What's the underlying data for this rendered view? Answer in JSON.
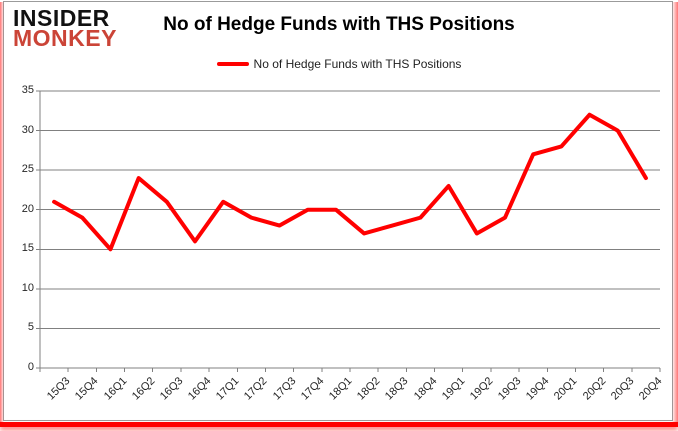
{
  "logo": {
    "line1": "INSIDER",
    "line2": "MONKEY"
  },
  "header": {
    "title": "No of Hedge Funds with THS Positions"
  },
  "legend": {
    "label": "No of Hedge Funds with THS Positions"
  },
  "colors": {
    "series": "#ff0000",
    "logo_accent": "#cb4437",
    "gridline": "#808080",
    "axis_line": "#808080",
    "axis_text": "#262626"
  },
  "chart_data": {
    "type": "line",
    "title": "No of Hedge Funds with THS Positions",
    "categories": [
      "15Q3",
      "15Q4",
      "16Q1",
      "16Q2",
      "16Q3",
      "16Q4",
      "17Q1",
      "17Q2",
      "17Q3",
      "17Q4",
      "18Q1",
      "18Q2",
      "18Q3",
      "18Q4",
      "19Q1",
      "19Q2",
      "19Q3",
      "19Q4",
      "20Q1",
      "20Q2",
      "20Q3",
      "20Q4"
    ],
    "series": [
      {
        "name": "No of Hedge Funds with THS Positions",
        "values": [
          21,
          19,
          15,
          24,
          21,
          16,
          21,
          19,
          18,
          20,
          20,
          17,
          18,
          19,
          23,
          17,
          19,
          27,
          28,
          32,
          30,
          24
        ]
      }
    ],
    "ylim": [
      0,
      35
    ],
    "ytick_step": 5,
    "yticks": [
      0,
      5,
      10,
      15,
      20,
      25,
      30,
      35
    ],
    "grid": true,
    "legend_position": "top-center",
    "xlabel": "",
    "ylabel": ""
  }
}
